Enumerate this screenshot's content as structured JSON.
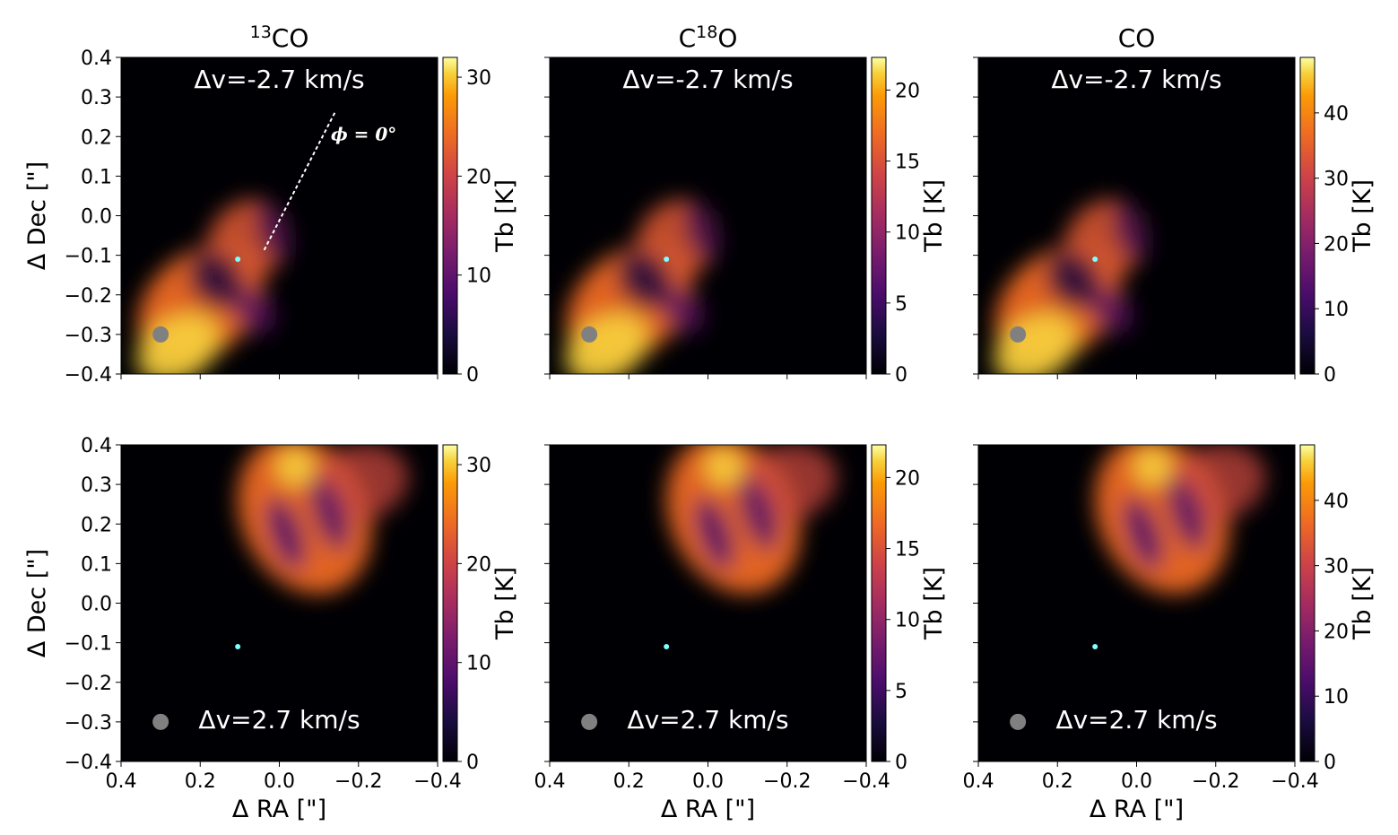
{
  "chart_data": [
    {
      "type": "heatmap",
      "title": "13CO",
      "title_main": "CO",
      "title_sup": "13",
      "title_pre": "",
      "annotation": "Δv=-2.7 km/s",
      "annotation_position": "top",
      "phi_label": "ϕ = 0°",
      "has_axis_line": true,
      "xlabel": "",
      "ylabel": "Δ Dec [\"]",
      "xlim": [
        0.4,
        -0.4
      ],
      "ylim": [
        -0.4,
        0.4
      ],
      "yticks": [
        "0.4",
        "0.3",
        "0.2",
        "0.1",
        "0.0",
        "−0.1",
        "−0.2",
        "−0.3",
        "−0.4"
      ],
      "xticks": [],
      "colorbar_label": "Tb [K]",
      "colorbar_range": [
        0,
        32
      ],
      "colorbar_ticks": [
        "0",
        "10",
        "20",
        "30"
      ],
      "star_position": [
        0.105,
        -0.11
      ],
      "beam_position": [
        0.3,
        -0.3
      ],
      "emission_summary": "bright ring pattern towards lower-left (east-south)"
    },
    {
      "type": "heatmap",
      "title": "C18O",
      "title_pre": "C",
      "title_sup": "18",
      "title_main": "O",
      "annotation": "Δv=-2.7 km/s",
      "annotation_position": "top",
      "xlabel": "",
      "ylabel": "",
      "xlim": [
        0.4,
        -0.4
      ],
      "ylim": [
        -0.4,
        0.4
      ],
      "yticks": [],
      "xticks": [],
      "colorbar_label": "Tb [K]",
      "colorbar_range": [
        0,
        22.3
      ],
      "colorbar_ticks": [
        "0",
        "5",
        "10",
        "15",
        "20"
      ],
      "star_position": [
        0.105,
        -0.11
      ],
      "beam_position": [
        0.3,
        -0.3
      ]
    },
    {
      "type": "heatmap",
      "title": "CO",
      "title_pre": "",
      "title_sup": "",
      "title_main": "CO",
      "annotation": "Δv=-2.7 km/s",
      "annotation_position": "top",
      "xlabel": "",
      "ylabel": "",
      "xlim": [
        0.4,
        -0.4
      ],
      "ylim": [
        -0.4,
        0.4
      ],
      "yticks": [],
      "xticks": [],
      "colorbar_label": "Tb [K]",
      "colorbar_range": [
        0,
        48.5
      ],
      "colorbar_ticks": [
        "0",
        "10",
        "20",
        "30",
        "40"
      ],
      "star_position": [
        0.105,
        -0.11
      ],
      "beam_position": [
        0.3,
        -0.3
      ]
    },
    {
      "type": "heatmap",
      "title": "",
      "annotation": "Δv=2.7 km/s",
      "annotation_position": "bottom",
      "xlabel": "Δ RA [\"]",
      "ylabel": "Δ Dec [\"]",
      "xlim": [
        0.4,
        -0.4
      ],
      "ylim": [
        -0.4,
        0.4
      ],
      "yticks": [
        "0.4",
        "0.3",
        "0.2",
        "0.1",
        "0.0",
        "−0.1",
        "−0.2",
        "−0.3",
        "−0.4"
      ],
      "xticks": [
        "0.4",
        "0.2",
        "0.0",
        "−0.2",
        "−0.4"
      ],
      "colorbar_label": "Tb [K]",
      "colorbar_range": [
        0,
        32
      ],
      "colorbar_ticks": [
        "0",
        "10",
        "20",
        "30"
      ],
      "star_position": [
        0.105,
        -0.11
      ],
      "beam_position": [
        0.3,
        -0.3
      ]
    },
    {
      "type": "heatmap",
      "title": "",
      "annotation": "Δv=2.7 km/s",
      "annotation_position": "bottom",
      "xlabel": "Δ RA [\"]",
      "ylabel": "",
      "xlim": [
        0.4,
        -0.4
      ],
      "ylim": [
        -0.4,
        0.4
      ],
      "yticks": [],
      "xticks": [
        "0.4",
        "0.2",
        "0.0",
        "−0.2",
        "−0.4"
      ],
      "colorbar_label": "Tb [K]",
      "colorbar_range": [
        0,
        22.3
      ],
      "colorbar_ticks": [
        "0",
        "5",
        "10",
        "15",
        "20"
      ],
      "star_position": [
        0.105,
        -0.11
      ],
      "beam_position": [
        0.3,
        -0.3
      ]
    },
    {
      "type": "heatmap",
      "title": "",
      "annotation": "Δv=2.7 km/s",
      "annotation_position": "bottom",
      "xlabel": "Δ RA [\"]",
      "ylabel": "",
      "xlim": [
        0.4,
        -0.4
      ],
      "ylim": [
        -0.4,
        0.4
      ],
      "yticks": [],
      "xticks": [
        "0.4",
        "0.2",
        "0.0",
        "−0.2",
        "−0.4"
      ],
      "colorbar_label": "Tb [K]",
      "colorbar_range": [
        0,
        48.5
      ],
      "colorbar_ticks": [
        "0",
        "10",
        "20",
        "30",
        "40"
      ],
      "star_position": [
        0.105,
        -0.11
      ],
      "beam_position": [
        0.3,
        -0.3
      ]
    }
  ],
  "colors": {
    "colormap": "inferno",
    "star_marker": "#7fffff",
    "beam": "#808080",
    "annotation_text": "#ffffff"
  }
}
